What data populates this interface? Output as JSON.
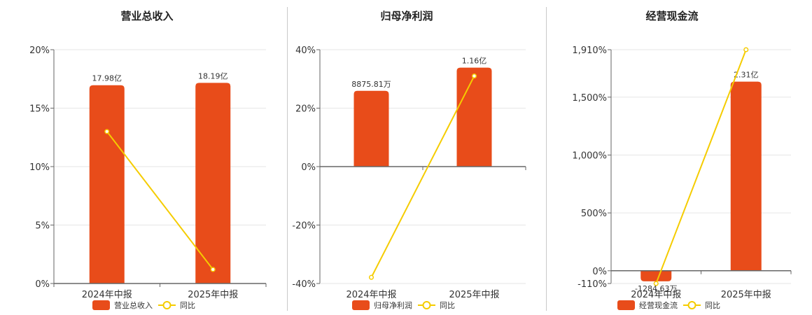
{
  "colors": {
    "bar": "#E84C1A",
    "line": "#F5CC00",
    "axis": "#666666",
    "grid": "#E6E6E6"
  },
  "chart_data": [
    {
      "type": "bar",
      "title": "营业总收入",
      "categories": [
        "2024年中报",
        "2025年中报"
      ],
      "series": [
        {
          "name": "营业总收入",
          "type": "bar",
          "axis": "hidden",
          "values": [
            17.98,
            18.19
          ],
          "labels": [
            "17.98亿",
            "18.19亿"
          ]
        },
        {
          "name": "同比",
          "type": "line",
          "axis": "left-percent",
          "values": [
            13.0,
            1.2
          ]
        }
      ],
      "y_ticks": [
        0,
        5,
        10,
        15,
        20
      ],
      "y_tick_labels": [
        "0%",
        "5%",
        "10%",
        "15%",
        "20%"
      ],
      "ylim": [
        0,
        20
      ],
      "bar_axis_max": 21.2,
      "grid": true,
      "legend": "bottom-center"
    },
    {
      "type": "bar",
      "title": "归母净利润",
      "categories": [
        "2024年中报",
        "2025年中报"
      ],
      "series": [
        {
          "name": "归母净利润",
          "type": "bar",
          "axis": "hidden",
          "values": [
            0.8876,
            1.16
          ],
          "labels": [
            "8875.81万",
            "1.16亿"
          ]
        },
        {
          "name": "同比",
          "type": "line",
          "axis": "left-percent",
          "values": [
            -37.9,
            31.0
          ]
        }
      ],
      "y_ticks": [
        -40,
        -20,
        0,
        20,
        40
      ],
      "y_tick_labels": [
        "-40%",
        "-20%",
        "0%",
        "20%",
        "40%"
      ],
      "ylim": [
        -40,
        40
      ],
      "bar_axis_max": 1.37,
      "grid": true,
      "legend": "bottom-center"
    },
    {
      "type": "bar",
      "title": "经营现金流",
      "categories": [
        "2024年中报",
        "2025年中报"
      ],
      "series": [
        {
          "name": "经营现金流",
          "type": "bar",
          "axis": "hidden",
          "values": [
            -0.1285,
            2.31
          ],
          "labels": [
            "-1284.63万",
            "2.31亿"
          ]
        },
        {
          "name": "同比",
          "type": "line",
          "axis": "left-percent",
          "values": [
            -110,
            1910
          ]
        }
      ],
      "y_ticks": [
        -110,
        0,
        500,
        1000,
        1500,
        1910
      ],
      "y_tick_labels": [
        "-110%",
        "0%",
        "500%",
        "1,000%",
        "1,500%",
        "1,910%"
      ],
      "ylim": [
        -110,
        1910
      ],
      "bar_axis_max": 2.7,
      "grid": true,
      "legend": "bottom-center"
    }
  ]
}
